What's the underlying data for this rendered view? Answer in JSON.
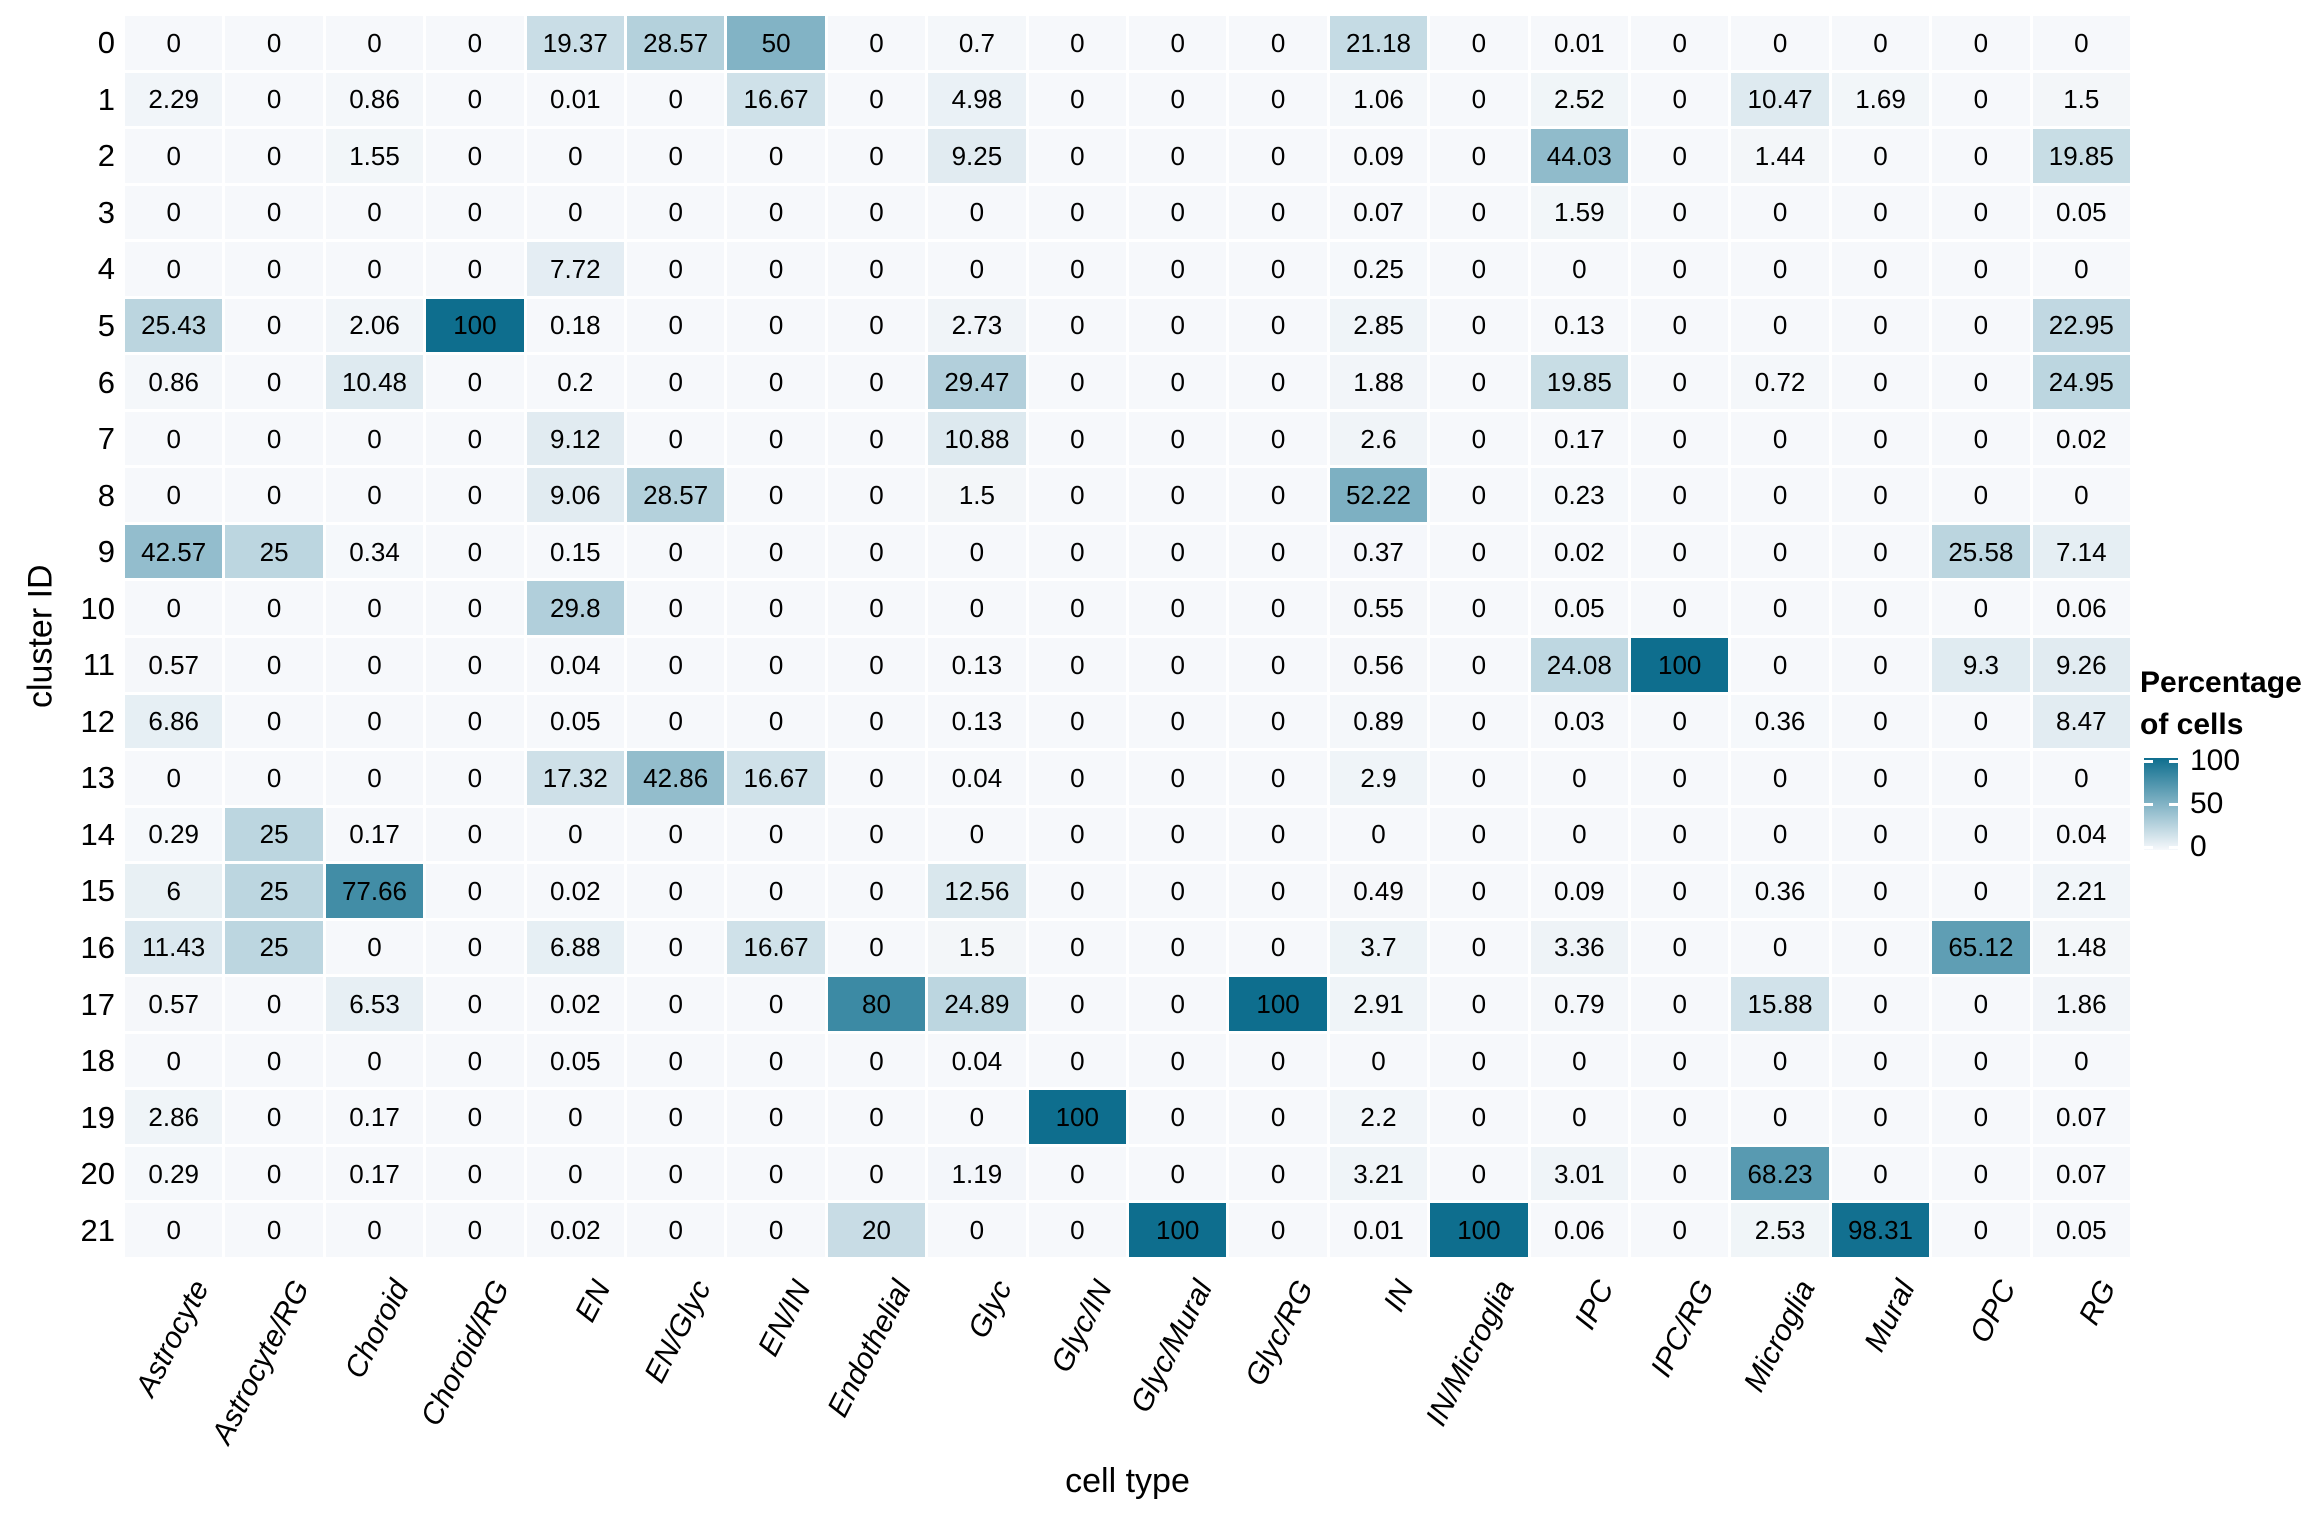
{
  "chart_data": {
    "type": "heatmap",
    "xlabel": "cell type",
    "ylabel": "cluster ID",
    "legend": {
      "title_line1": "Percentage",
      "title_line2": "of cells",
      "ticks": [
        "100",
        "50",
        "0"
      ]
    },
    "colorscale": {
      "low": "#f6f8fb",
      "high": "#0e6e8e",
      "domain": [
        0,
        100
      ]
    },
    "grid_line_color": "#ffffff",
    "columns": [
      "Astrocyte",
      "Astrocyte/RG",
      "Choroid",
      "Choroid/RG",
      "EN",
      "EN/Glyc",
      "EN/IN",
      "Endothelial",
      "Glyc",
      "Glyc/IN",
      "Glyc/Mural",
      "Glyc/RG",
      "IN",
      "IN/Microglia",
      "IPC",
      "IPC/RG",
      "Microglia",
      "Mural",
      "OPC",
      "RG"
    ],
    "rows": [
      "0",
      "1",
      "2",
      "3",
      "4",
      "5",
      "6",
      "7",
      "8",
      "9",
      "10",
      "11",
      "12",
      "13",
      "14",
      "15",
      "16",
      "17",
      "18",
      "19",
      "20",
      "21"
    ],
    "values": [
      [
        "0",
        "0",
        "0",
        "0",
        "19.37",
        "28.57",
        "50",
        "0",
        "0.7",
        "0",
        "0",
        "0",
        "21.18",
        "0",
        "0.01",
        "0",
        "0",
        "0",
        "0",
        "0"
      ],
      [
        "2.29",
        "0",
        "0.86",
        "0",
        "0.01",
        "0",
        "16.67",
        "0",
        "4.98",
        "0",
        "0",
        "0",
        "1.06",
        "0",
        "2.52",
        "0",
        "10.47",
        "1.69",
        "0",
        "1.5"
      ],
      [
        "0",
        "0",
        "1.55",
        "0",
        "0",
        "0",
        "0",
        "0",
        "9.25",
        "0",
        "0",
        "0",
        "0.09",
        "0",
        "44.03",
        "0",
        "1.44",
        "0",
        "0",
        "19.85"
      ],
      [
        "0",
        "0",
        "0",
        "0",
        "0",
        "0",
        "0",
        "0",
        "0",
        "0",
        "0",
        "0",
        "0.07",
        "0",
        "1.59",
        "0",
        "0",
        "0",
        "0",
        "0.05"
      ],
      [
        "0",
        "0",
        "0",
        "0",
        "7.72",
        "0",
        "0",
        "0",
        "0",
        "0",
        "0",
        "0",
        "0.25",
        "0",
        "0",
        "0",
        "0",
        "0",
        "0",
        "0"
      ],
      [
        "25.43",
        "0",
        "2.06",
        "100",
        "0.18",
        "0",
        "0",
        "0",
        "2.73",
        "0",
        "0",
        "0",
        "2.85",
        "0",
        "0.13",
        "0",
        "0",
        "0",
        "0",
        "22.95"
      ],
      [
        "0.86",
        "0",
        "10.48",
        "0",
        "0.2",
        "0",
        "0",
        "0",
        "29.47",
        "0",
        "0",
        "0",
        "1.88",
        "0",
        "19.85",
        "0",
        "0.72",
        "0",
        "0",
        "24.95"
      ],
      [
        "0",
        "0",
        "0",
        "0",
        "9.12",
        "0",
        "0",
        "0",
        "10.88",
        "0",
        "0",
        "0",
        "2.6",
        "0",
        "0.17",
        "0",
        "0",
        "0",
        "0",
        "0.02"
      ],
      [
        "0",
        "0",
        "0",
        "0",
        "9.06",
        "28.57",
        "0",
        "0",
        "1.5",
        "0",
        "0",
        "0",
        "52.22",
        "0",
        "0.23",
        "0",
        "0",
        "0",
        "0",
        "0"
      ],
      [
        "42.57",
        "25",
        "0.34",
        "0",
        "0.15",
        "0",
        "0",
        "0",
        "0",
        "0",
        "0",
        "0",
        "0.37",
        "0",
        "0.02",
        "0",
        "0",
        "0",
        "25.58",
        "7.14"
      ],
      [
        "0",
        "0",
        "0",
        "0",
        "29.8",
        "0",
        "0",
        "0",
        "0",
        "0",
        "0",
        "0",
        "0.55",
        "0",
        "0.05",
        "0",
        "0",
        "0",
        "0",
        "0.06"
      ],
      [
        "0.57",
        "0",
        "0",
        "0",
        "0.04",
        "0",
        "0",
        "0",
        "0.13",
        "0",
        "0",
        "0",
        "0.56",
        "0",
        "24.08",
        "100",
        "0",
        "0",
        "9.3",
        "9.26"
      ],
      [
        "6.86",
        "0",
        "0",
        "0",
        "0.05",
        "0",
        "0",
        "0",
        "0.13",
        "0",
        "0",
        "0",
        "0.89",
        "0",
        "0.03",
        "0",
        "0.36",
        "0",
        "0",
        "8.47"
      ],
      [
        "0",
        "0",
        "0",
        "0",
        "17.32",
        "42.86",
        "16.67",
        "0",
        "0.04",
        "0",
        "0",
        "0",
        "2.9",
        "0",
        "0",
        "0",
        "0",
        "0",
        "0",
        "0"
      ],
      [
        "0.29",
        "25",
        "0.17",
        "0",
        "0",
        "0",
        "0",
        "0",
        "0",
        "0",
        "0",
        "0",
        "0",
        "0",
        "0",
        "0",
        "0",
        "0",
        "0",
        "0.04"
      ],
      [
        "6",
        "25",
        "77.66",
        "0",
        "0.02",
        "0",
        "0",
        "0",
        "12.56",
        "0",
        "0",
        "0",
        "0.49",
        "0",
        "0.09",
        "0",
        "0.36",
        "0",
        "0",
        "2.21"
      ],
      [
        "11.43",
        "25",
        "0",
        "0",
        "6.88",
        "0",
        "16.67",
        "0",
        "1.5",
        "0",
        "0",
        "0",
        "3.7",
        "0",
        "3.36",
        "0",
        "0",
        "0",
        "65.12",
        "1.48"
      ],
      [
        "0.57",
        "0",
        "6.53",
        "0",
        "0.02",
        "0",
        "0",
        "80",
        "24.89",
        "0",
        "0",
        "100",
        "2.91",
        "0",
        "0.79",
        "0",
        "15.88",
        "0",
        "0",
        "1.86"
      ],
      [
        "0",
        "0",
        "0",
        "0",
        "0.05",
        "0",
        "0",
        "0",
        "0.04",
        "0",
        "0",
        "0",
        "0",
        "0",
        "0",
        "0",
        "0",
        "0",
        "0",
        "0"
      ],
      [
        "2.86",
        "0",
        "0.17",
        "0",
        "0",
        "0",
        "0",
        "0",
        "0",
        "100",
        "0",
        "0",
        "2.2",
        "0",
        "0",
        "0",
        "0",
        "0",
        "0",
        "0.07"
      ],
      [
        "0.29",
        "0",
        "0.17",
        "0",
        "0",
        "0",
        "0",
        "0",
        "1.19",
        "0",
        "0",
        "0",
        "3.21",
        "0",
        "3.01",
        "0",
        "68.23",
        "0",
        "0",
        "0.07"
      ],
      [
        "0",
        "0",
        "0",
        "0",
        "0.02",
        "0",
        "0",
        "20",
        "0",
        "0",
        "100",
        "0",
        "0.01",
        "100",
        "0.06",
        "0",
        "2.53",
        "98.31",
        "0",
        "0.05"
      ]
    ]
  }
}
